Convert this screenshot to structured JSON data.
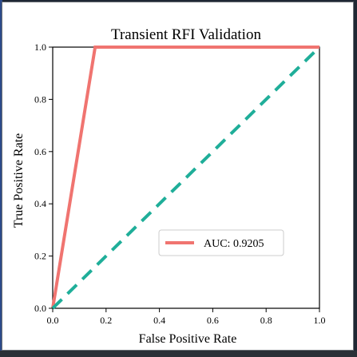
{
  "chart_data": {
    "type": "line",
    "title": "Transient RFI Validation",
    "xlabel": "False Positive Rate",
    "ylabel": "True Positive Rate",
    "xlim": [
      0.0,
      1.0
    ],
    "ylim": [
      0.0,
      1.0
    ],
    "xticks": [
      "0.0",
      "0.2",
      "0.4",
      "0.6",
      "0.8",
      "1.0"
    ],
    "yticks": [
      "0.0",
      "0.2",
      "0.4",
      "0.6",
      "0.8",
      "1.0"
    ],
    "grid": false,
    "legend_position": "lower-right",
    "series": [
      {
        "name": "AUC: 0.9205",
        "style": "solid",
        "color": "#f07470",
        "x": [
          0.0,
          0.159,
          1.0
        ],
        "y": [
          0.0,
          1.0,
          1.0
        ]
      },
      {
        "style": "dashed",
        "color": "#1fae99",
        "x": [
          0.0,
          1.0
        ],
        "y": [
          0.0,
          1.0
        ]
      }
    ]
  }
}
